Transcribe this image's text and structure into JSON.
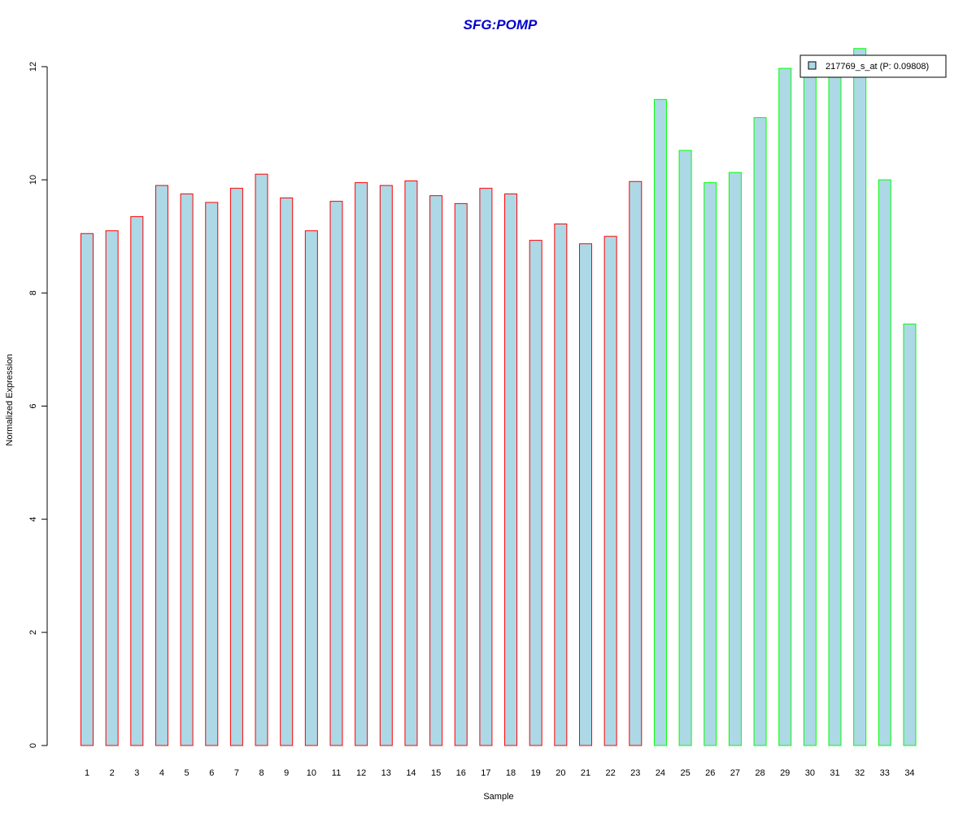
{
  "chart_data": {
    "type": "bar",
    "title": "SFG:POMP",
    "xlabel": "Sample",
    "ylabel": "Normalized Expression",
    "ylim": [
      0,
      12
    ],
    "yticks": [
      0,
      2,
      4,
      6,
      8,
      10,
      12
    ],
    "categories": [
      "1",
      "2",
      "3",
      "4",
      "5",
      "6",
      "7",
      "8",
      "9",
      "10",
      "11",
      "12",
      "13",
      "14",
      "15",
      "16",
      "17",
      "18",
      "19",
      "20",
      "21",
      "22",
      "23",
      "24",
      "25",
      "26",
      "27",
      "28",
      "29",
      "30",
      "31",
      "32",
      "33",
      "34"
    ],
    "series": [
      {
        "name": "217769_s_at (P: 0.09808)",
        "values": [
          9.05,
          9.1,
          9.35,
          9.9,
          9.75,
          9.6,
          9.85,
          10.1,
          9.68,
          9.1,
          9.62,
          9.95,
          9.9,
          9.98,
          9.72,
          9.58,
          9.85,
          9.75,
          8.93,
          9.22,
          8.87,
          9.0,
          9.97,
          11.42,
          10.52,
          9.95,
          10.13,
          11.1,
          11.97,
          11.95,
          11.9,
          12.32,
          10.0,
          7.45
        ]
      }
    ],
    "group_of_sample": [
      "red",
      "red",
      "red",
      "red",
      "red",
      "red",
      "red",
      "red",
      "red",
      "red",
      "red",
      "red",
      "red",
      "red",
      "red",
      "red",
      "red",
      "red",
      "red",
      "red",
      "red",
      "red",
      "red",
      "green",
      "green",
      "green",
      "green",
      "green",
      "green",
      "green",
      "green",
      "green",
      "green",
      "green"
    ],
    "legend_position": "top-right",
    "grid": false
  },
  "colors": {
    "bar_fill": "#add8e6",
    "red_border": "#ff0000",
    "green_border": "#00ff00",
    "title": "#0000cd",
    "axis": "#000000"
  }
}
